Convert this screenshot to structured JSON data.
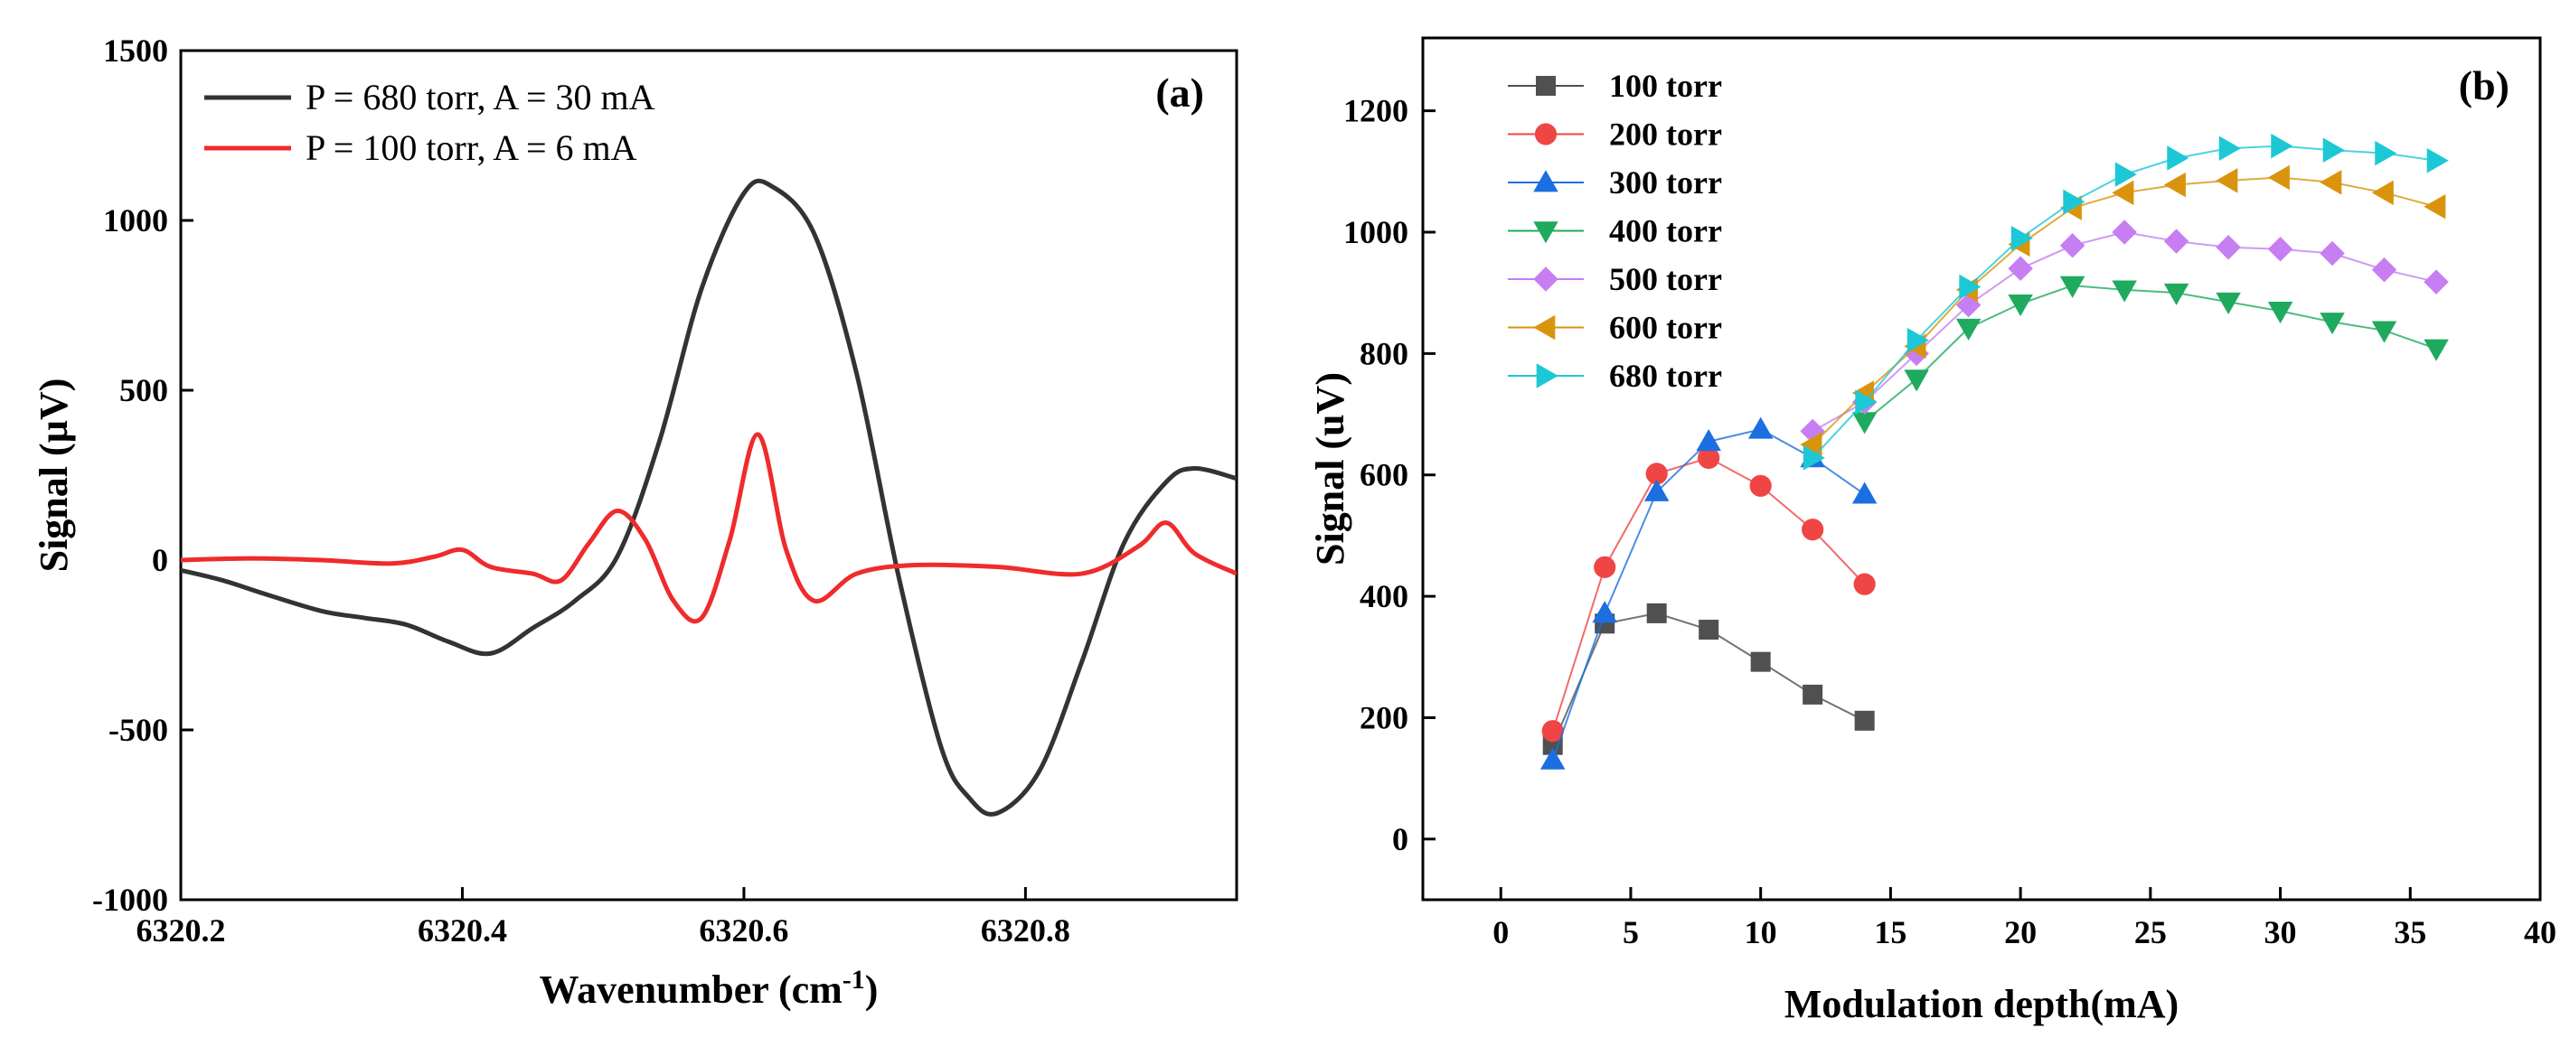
{
  "chart_data": [
    {
      "type": "line",
      "panel_label": "(a)",
      "xlabel": "Wavenumber (cm",
      "xlabel_sup": "-1",
      "xlabel_end": ")",
      "ylabel": "Signal (µV)",
      "xlim": [
        6320.2,
        6320.95
      ],
      "ylim": [
        -1000,
        1500
      ],
      "xticks": [
        6320.2,
        6320.4,
        6320.6,
        6320.8
      ],
      "xtick_labels": [
        "6320.2",
        "6320.4",
        "6320.6",
        "6320.8"
      ],
      "yticks": [
        -1000,
        -500,
        0,
        500,
        1000,
        1500
      ],
      "ytick_labels": [
        "-1000",
        "-500",
        "0",
        "500",
        "1000",
        "1500"
      ],
      "legend_position": "top-left",
      "series": [
        {
          "name": "P = 680 torr, A = 30 mA",
          "color": "#333333",
          "x": [
            6320.2,
            6320.23,
            6320.26,
            6320.3,
            6320.33,
            6320.36,
            6320.39,
            6320.42,
            6320.45,
            6320.48,
            6320.51,
            6320.54,
            6320.57,
            6320.6,
            6320.62,
            6320.65,
            6320.68,
            6320.71,
            6320.74,
            6320.76,
            6320.78,
            6320.81,
            6320.84,
            6320.87,
            6320.9,
            6320.92,
            6320.95
          ],
          "y": [
            -30,
            -60,
            -100,
            -150,
            -170,
            -190,
            -240,
            -275,
            -200,
            -120,
            10,
            350,
            800,
            1080,
            1100,
            960,
            550,
            -50,
            -550,
            -700,
            -745,
            -620,
            -300,
            50,
            230,
            270,
            240
          ]
        },
        {
          "name": "P = 100 torr, A = 6 mA",
          "color": "#ef2b2b",
          "x": [
            6320.2,
            6320.25,
            6320.3,
            6320.35,
            6320.38,
            6320.4,
            6320.42,
            6320.45,
            6320.47,
            6320.49,
            6320.51,
            6320.53,
            6320.55,
            6320.57,
            6320.59,
            6320.61,
            6320.63,
            6320.65,
            6320.68,
            6320.72,
            6320.78,
            6320.84,
            6320.88,
            6320.9,
            6320.92,
            6320.95
          ],
          "y": [
            0,
            5,
            0,
            -10,
            10,
            30,
            -20,
            -40,
            -60,
            50,
            145,
            60,
            -120,
            -170,
            60,
            370,
            30,
            -120,
            -40,
            -15,
            -20,
            -40,
            40,
            110,
            20,
            -40
          ]
        }
      ]
    },
    {
      "type": "scatter",
      "panel_label": "(b)",
      "xlabel": "Modulation depth(mA)",
      "ylabel": "Signal (uV)",
      "xlim": [
        -3,
        40
      ],
      "ylim": [
        -100,
        1320
      ],
      "xticks": [
        0,
        5,
        10,
        15,
        20,
        25,
        30,
        35,
        40
      ],
      "xtick_labels": [
        "0",
        "5",
        "10",
        "15",
        "20",
        "25",
        "30",
        "35",
        "40"
      ],
      "yticks": [
        0,
        200,
        400,
        600,
        800,
        1000,
        1200
      ],
      "ytick_labels": [
        "0",
        "200",
        "400",
        "600",
        "800",
        "1000",
        "1200"
      ],
      "legend_position": "top-left",
      "series": [
        {
          "name": "100 torr",
          "color": "#505050",
          "marker": "square",
          "x": [
            2,
            4,
            6,
            8,
            10,
            12,
            14
          ],
          "y": [
            155,
            355,
            372,
            345,
            292,
            238,
            195
          ]
        },
        {
          "name": "200 torr",
          "color": "#f04545",
          "marker": "circle",
          "x": [
            2,
            4,
            6,
            8,
            10,
            12,
            14
          ],
          "y": [
            178,
            448,
            602,
            628,
            582,
            510,
            420
          ]
        },
        {
          "name": "300 torr",
          "color": "#1c6fe0",
          "marker": "triangle-up",
          "x": [
            2,
            4,
            6,
            8,
            10,
            12,
            14
          ],
          "y": [
            130,
            372,
            572,
            655,
            675,
            628,
            568
          ]
        },
        {
          "name": "400 torr",
          "color": "#1faa5e",
          "marker": "triangle-down",
          "x": [
            14,
            16,
            18,
            20,
            22,
            24,
            26,
            28,
            30,
            32,
            34,
            36
          ],
          "y": [
            688,
            758,
            842,
            882,
            912,
            905,
            900,
            885,
            870,
            852,
            838,
            808
          ]
        },
        {
          "name": "500 torr",
          "color": "#c77ef2",
          "marker": "diamond",
          "x": [
            12,
            14,
            16,
            18,
            20,
            22,
            24,
            26,
            28,
            30,
            32,
            34,
            36
          ],
          "y": [
            672,
            720,
            800,
            880,
            940,
            978,
            1000,
            985,
            975,
            972,
            965,
            938,
            918
          ]
        },
        {
          "name": "600 torr",
          "color": "#d9940e",
          "marker": "triangle-left",
          "x": [
            12,
            14,
            16,
            18,
            20,
            22,
            24,
            26,
            28,
            30,
            32,
            34,
            36
          ],
          "y": [
            650,
            735,
            812,
            905,
            980,
            1040,
            1065,
            1078,
            1085,
            1090,
            1082,
            1065,
            1042
          ]
        },
        {
          "name": "680 torr",
          "color": "#1cc8d6",
          "marker": "triangle-right",
          "x": [
            12,
            14,
            16,
            18,
            20,
            22,
            24,
            26,
            28,
            30,
            32,
            34,
            36
          ],
          "y": [
            628,
            720,
            822,
            910,
            990,
            1050,
            1095,
            1122,
            1138,
            1142,
            1135,
            1130,
            1118
          ]
        }
      ]
    }
  ]
}
